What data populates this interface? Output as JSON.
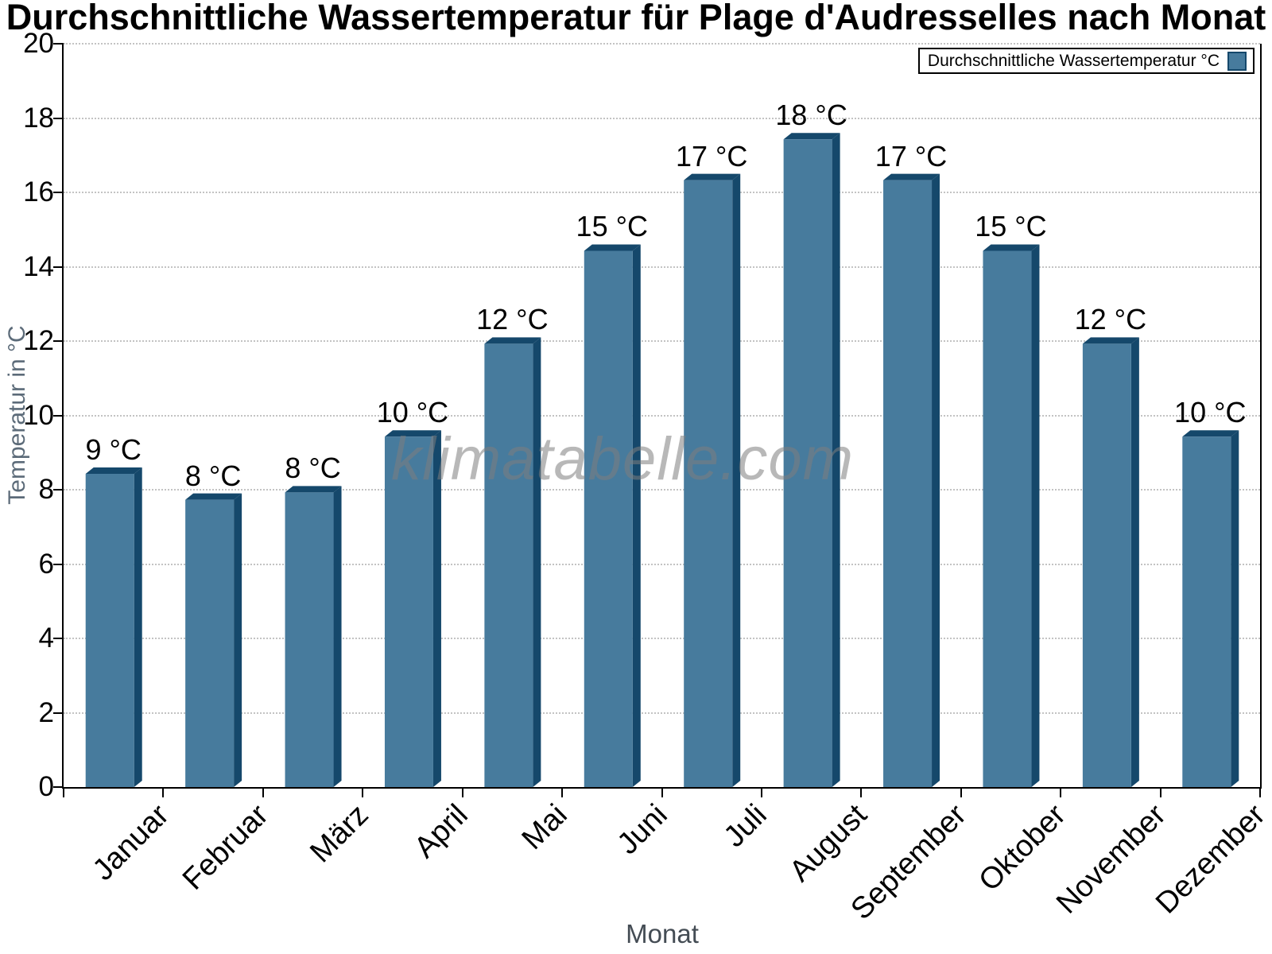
{
  "title": "Durchschnittliche Wassertemperatur für Plage d'Audresselles nach Monat",
  "legend": {
    "label": "Durchschnittliche Wassertemperatur °C"
  },
  "watermark": "klimatabelle.com",
  "axes": {
    "x_title": "Monat",
    "y_title": "Temperatur in °C"
  },
  "chart_data": {
    "type": "bar",
    "title": "Durchschnittliche Wassertemperatur für Plage d'Audresselles nach Monat",
    "categories": [
      "Januar",
      "Februar",
      "März",
      "April",
      "Mai",
      "Juni",
      "Juli",
      "August",
      "September",
      "Oktober",
      "November",
      "Dezember"
    ],
    "values": [
      8.6,
      7.9,
      8.1,
      9.6,
      12.1,
      14.6,
      16.5,
      17.6,
      16.5,
      14.6,
      12.1,
      9.6
    ],
    "bar_labels": [
      "9 °C",
      "8 °C",
      "8 °C",
      "10 °C",
      "12 °C",
      "15 °C",
      "17 °C",
      "18 °C",
      "17 °C",
      "15 °C",
      "12 °C",
      "10 °C"
    ],
    "xlabel": "Monat",
    "ylabel": "Temperatur in °C",
    "ylim": [
      0,
      20
    ],
    "ytick_step": 2,
    "grid": true,
    "legend_position": "top-right",
    "legend_label": "Durchschnittliche Wassertemperatur °C",
    "bar_color": "#477b9d",
    "bar_side_color": "#15486b",
    "grid_color": "#c3c3c3",
    "axis_color": "#000000",
    "ylabel_color": "#5c6b79",
    "xlabel_color": "#444c54"
  }
}
